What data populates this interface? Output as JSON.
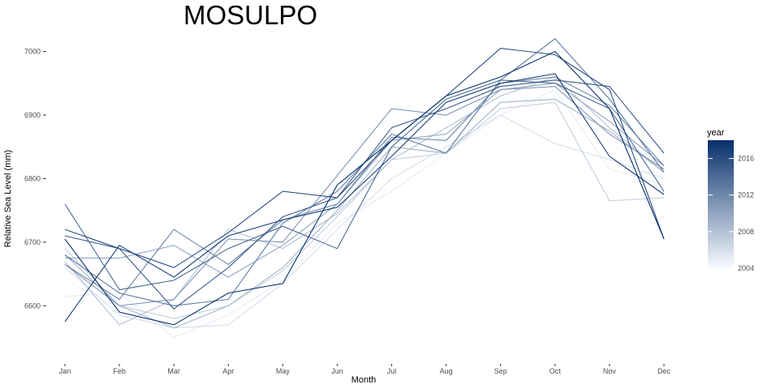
{
  "chart_data": {
    "type": "line",
    "title": "MOSULPO",
    "xlabel": "Month",
    "ylabel": "Relative Sea Level (mm)",
    "categories": [
      "Jan",
      "Feb",
      "Mar",
      "Apr",
      "May",
      "Jun",
      "Jul",
      "Aug",
      "Sep",
      "Oct",
      "Nov",
      "Dec"
    ],
    "ylim": [
      6520,
      7030
    ],
    "yticks": [
      6600,
      6700,
      6800,
      6900,
      7000
    ],
    "ytick_labels": [
      "6600",
      "6700",
      "6800",
      "6900",
      "7000"
    ],
    "grid": false,
    "legend": {
      "title": "year",
      "position": "right",
      "type": "colorbar",
      "range": [
        2004,
        2018
      ],
      "ticks": [
        2004,
        2008,
        2012,
        2016
      ],
      "tick_labels": [
        "2004",
        "2008",
        "2012",
        "2016"
      ],
      "color_low": "#f7fbff",
      "color_high": "#08306b"
    },
    "series": [
      {
        "year": 2004,
        "values": [
          6640,
          6595,
          6560,
          6535,
          6610,
          6710,
          6790,
          6830,
          6880,
          6925,
          6860,
          6790
        ]
      },
      {
        "year": 2005,
        "values": [
          6615,
          6620,
          6550,
          6585,
          6640,
          6730,
          6780,
          6840,
          6900,
          6940,
          6815,
          6790
        ]
      },
      {
        "year": 2006,
        "values": [
          6660,
          6585,
          6565,
          6570,
          6635,
          6720,
          6800,
          6850,
          6900,
          6855,
          6830,
          6800
        ]
      },
      {
        "year": 2007,
        "values": [
          6690,
          6600,
          6580,
          6600,
          6655,
          6740,
          6830,
          6840,
          6910,
          6920,
          6765,
          6770
        ]
      },
      {
        "year": 2008,
        "values": [
          6670,
          6570,
          6610,
          6720,
          6690,
          6745,
          6830,
          6880,
          6930,
          6960,
          6880,
          6810
        ]
      },
      {
        "year": 2009,
        "values": [
          6680,
          6600,
          6565,
          6600,
          6660,
          6750,
          6850,
          6840,
          6920,
          6925,
          6875,
          6810
        ]
      },
      {
        "year": 2010,
        "values": [
          6675,
          6675,
          6695,
          6645,
          6695,
          6760,
          6860,
          6870,
          6940,
          6950,
          6890,
          6820
        ]
      },
      {
        "year": 2011,
        "values": [
          6665,
          6600,
          6610,
          6705,
          6700,
          6805,
          6910,
          6900,
          6940,
          6945,
          6870,
          6815
        ]
      },
      {
        "year": 2012,
        "values": [
          6665,
          6610,
          6720,
          6665,
          6735,
          6760,
          6865,
          6860,
          6950,
          6960,
          6915,
          6820
        ]
      },
      {
        "year": 2013,
        "values": [
          6680,
          6620,
          6600,
          6610,
          6730,
          6780,
          6870,
          6840,
          6955,
          7020,
          6925,
          6810
        ]
      },
      {
        "year": 2014,
        "values": [
          6760,
          6625,
          6640,
          6690,
          6725,
          6690,
          6850,
          6925,
          6955,
          6950,
          6910,
          6780
        ]
      },
      {
        "year": 2015,
        "values": [
          6710,
          6690,
          6595,
          6660,
          6740,
          6770,
          6880,
          6910,
          6945,
          6955,
          6945,
          6840
        ]
      },
      {
        "year": 2016,
        "values": [
          6720,
          6690,
          6660,
          6715,
          6780,
          6770,
          6860,
          6930,
          7005,
          6995,
          6940,
          6705
        ]
      },
      {
        "year": 2017,
        "values": [
          6575,
          6695,
          6645,
          6710,
          6735,
          6755,
          6835,
          6920,
          6950,
          6965,
          6835,
          6775
        ]
      },
      {
        "year": 2018,
        "values": [
          6705,
          6590,
          6570,
          6620,
          6635,
          6790,
          6860,
          6930,
          6960,
          7000,
          6910,
          6705
        ]
      }
    ]
  }
}
